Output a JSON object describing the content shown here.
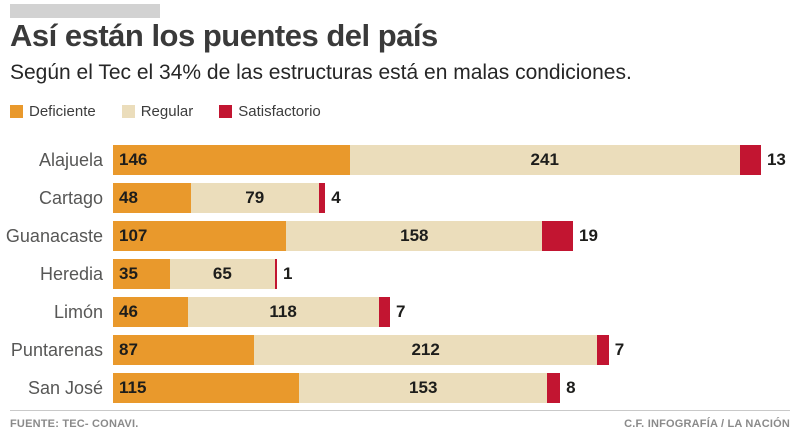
{
  "header": {
    "title": "Así están los puentes del país",
    "subtitle": "Según el Tec el 34% de las estructuras está en malas condiciones."
  },
  "colors": {
    "deficiente": "#e9992c",
    "regular": "#ebddbb",
    "satisfactorio": "#c21531",
    "title_text": "#3a3a3a",
    "kicker_band": "#d2d2d2"
  },
  "legend": [
    {
      "label": "Deficiente",
      "color": "#e9992c"
    },
    {
      "label": "Regular",
      "color": "#ebddbb"
    },
    {
      "label": "Satisfactorio",
      "color": "#c21531"
    }
  ],
  "chart_data": {
    "type": "bar",
    "orientation": "horizontal",
    "stacked": true,
    "title": "Así están los puentes del país",
    "subtitle": "Según el Tec el 34% de las estructuras está en malas condiciones.",
    "categories": [
      "Alajuela",
      "Cartago",
      "Guanacaste",
      "Heredia",
      "Limón",
      "Puntarenas",
      "San José"
    ],
    "series": [
      {
        "name": "Deficiente",
        "color": "#e9992c",
        "values": [
          146,
          48,
          107,
          35,
          46,
          87,
          115
        ]
      },
      {
        "name": "Regular",
        "color": "#ebddbb",
        "values": [
          241,
          79,
          158,
          65,
          118,
          212,
          153
        ]
      },
      {
        "name": "Satisfactorio",
        "color": "#c21531",
        "values": [
          13,
          4,
          19,
          1,
          7,
          7,
          8
        ]
      }
    ],
    "value_labels": true,
    "legend_position": "top",
    "grid": false,
    "xlabel": "",
    "ylabel": ""
  },
  "footer": {
    "source": "FUENTE: TEC- CONAVI.",
    "credit": "C.F. INFOGRAFÍA / LA NACIÓN"
  }
}
